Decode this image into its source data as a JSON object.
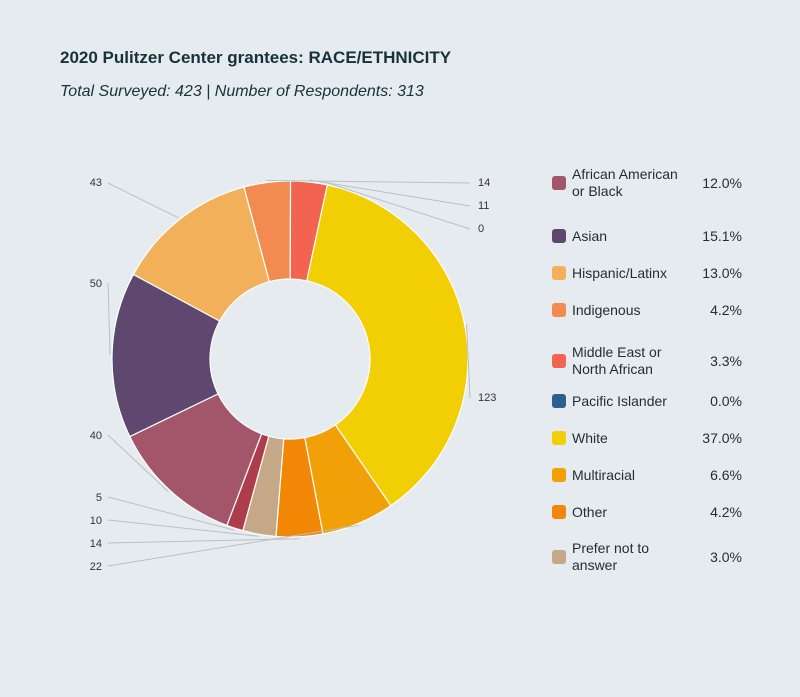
{
  "title": "2020 Pulitzer Center grantees: RACE/ETHNICITY",
  "subtitle": "Total Surveyed: 423 | Number of Respondents: 313",
  "chart_data": {
    "type": "pie",
    "variant": "donut",
    "legend": "right",
    "slices": [
      {
        "label": "African American or Black",
        "value": 40,
        "percent": "12.0%",
        "color": "#a3566a"
      },
      {
        "label": "Asian",
        "value": 50,
        "percent": "15.1%",
        "color": "#5e4870"
      },
      {
        "label": "Hispanic/Latinx",
        "value": 43,
        "percent": "13.0%",
        "color": "#f2b05b"
      },
      {
        "label": "Indigenous",
        "value": 14,
        "percent": "4.2%",
        "color": "#f28b4f"
      },
      {
        "label": "Middle East or North African",
        "value": 11,
        "percent": "3.3%",
        "color": "#f26450"
      },
      {
        "label": "Pacific Islander",
        "value": 0,
        "percent": "0.0%",
        "color": "#2b5f8e"
      },
      {
        "label": "White",
        "value": 123,
        "percent": "37.0%",
        "color": "#f2ce05"
      },
      {
        "label": "Multiracial",
        "value": 22,
        "percent": "6.6%",
        "color": "#f2a007"
      },
      {
        "label": "Other",
        "value": 14,
        "percent": "4.2%",
        "color": "#f28705"
      },
      {
        "label": "Prefer not to answer",
        "value": 10,
        "percent": "3.0%",
        "color": "#c4a888"
      },
      {
        "label": "",
        "value": 5,
        "percent": "",
        "color": "#ad3d4a"
      }
    ]
  }
}
